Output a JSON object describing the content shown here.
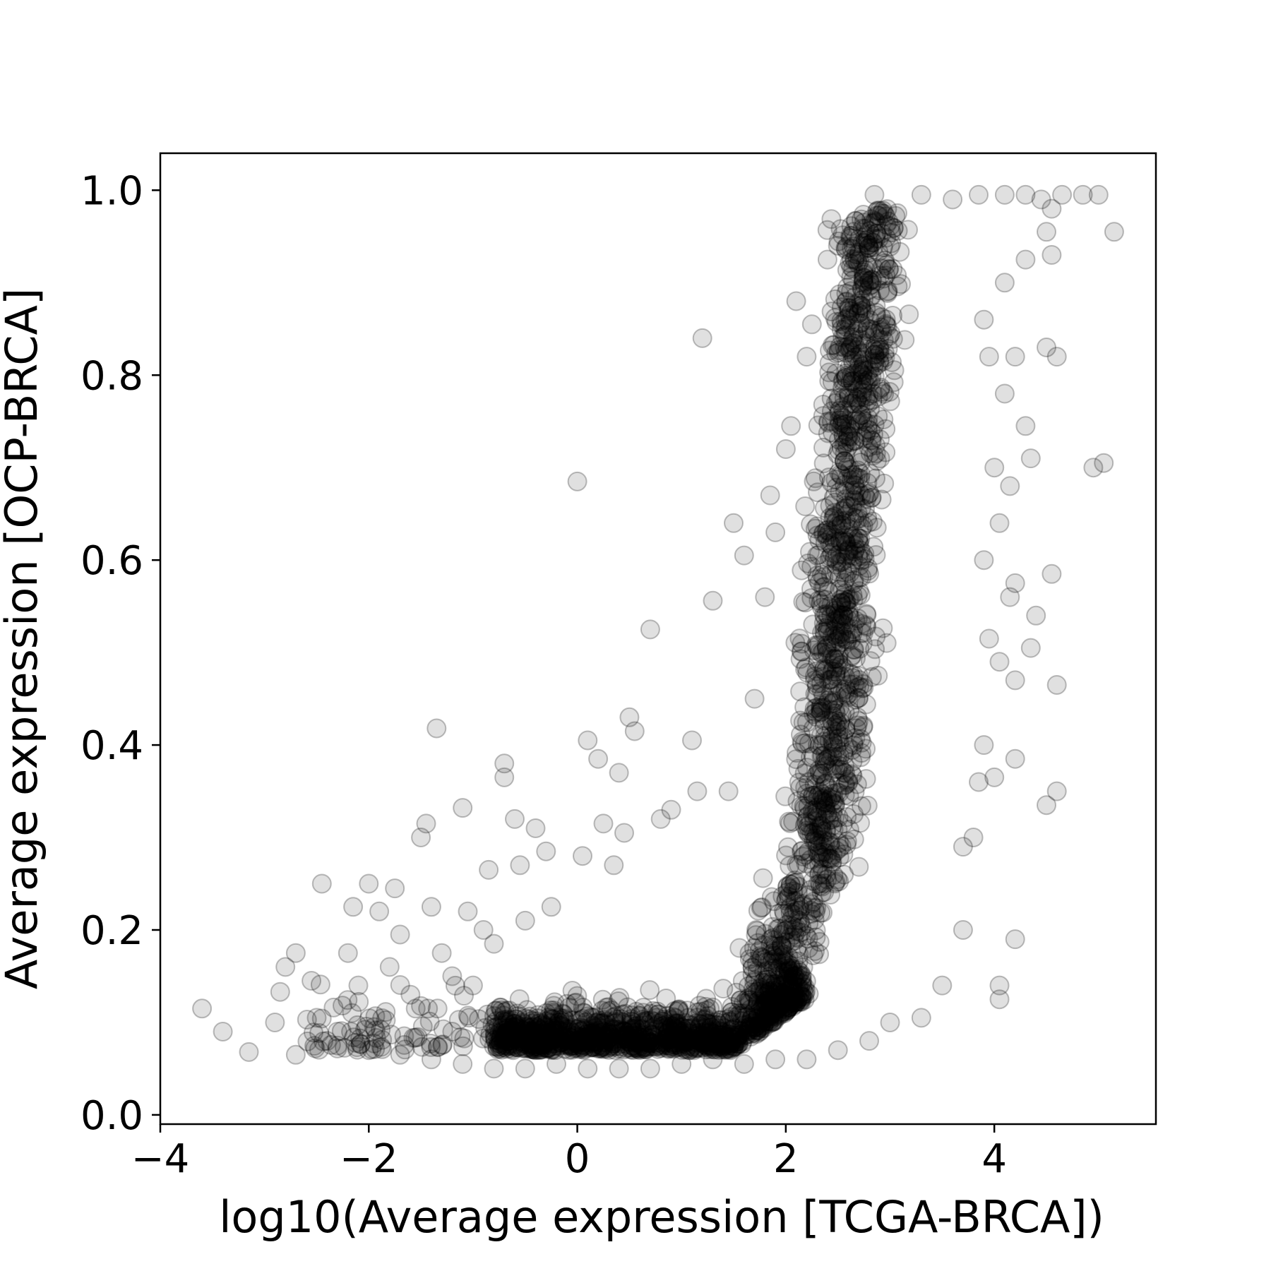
{
  "chart_data": {
    "type": "scatter",
    "title": "",
    "xlabel": "log10(Average expression [TCGA-BRCA])",
    "ylabel": "Average expression [OCP-BRCA]",
    "xlim": [
      -4,
      5.55
    ],
    "ylim": [
      -0.01,
      1.04
    ],
    "xticks": [
      {
        "value": -4,
        "label": "−4"
      },
      {
        "value": -2,
        "label": "−2"
      },
      {
        "value": 0,
        "label": "0"
      },
      {
        "value": 2,
        "label": "2"
      },
      {
        "value": 4,
        "label": "4"
      }
    ],
    "yticks": [
      {
        "value": 0.0,
        "label": "0.0"
      },
      {
        "value": 0.2,
        "label": "0.2"
      },
      {
        "value": 0.4,
        "label": "0.4"
      },
      {
        "value": 0.6,
        "label": "0.6"
      },
      {
        "value": 0.8,
        "label": "0.8"
      },
      {
        "value": 1.0,
        "label": "1.0"
      }
    ],
    "grid": false,
    "marker": {
      "shape": "circle",
      "color": "#000000",
      "opacity": 0.12,
      "edge_opacity": 0.25
    },
    "points": [
      [
        -3.6,
        0.115
      ],
      [
        -3.4,
        0.09
      ],
      [
        -3.15,
        0.068
      ],
      [
        -2.9,
        0.1
      ],
      [
        -2.85,
        0.133
      ],
      [
        -2.8,
        0.16
      ],
      [
        -2.7,
        0.175
      ],
      [
        -2.7,
        0.065
      ],
      [
        -2.55,
        0.145
      ],
      [
        -2.5,
        0.105
      ],
      [
        -2.45,
        0.25
      ],
      [
        -2.4,
        0.08
      ],
      [
        -2.3,
        0.09
      ],
      [
        -2.2,
        0.175
      ],
      [
        -2.15,
        0.225
      ],
      [
        -2.1,
        0.14
      ],
      [
        -2.0,
        0.25
      ],
      [
        -1.95,
        0.095
      ],
      [
        -1.9,
        0.22
      ],
      [
        -1.8,
        0.16
      ],
      [
        -1.75,
        0.245
      ],
      [
        -1.7,
        0.195
      ],
      [
        -1.6,
        0.13
      ],
      [
        -1.55,
        0.115
      ],
      [
        -1.5,
        0.3
      ],
      [
        -1.45,
        0.315
      ],
      [
        -1.4,
        0.225
      ],
      [
        -1.35,
        0.418
      ],
      [
        -1.3,
        0.175
      ],
      [
        -1.2,
        0.09
      ],
      [
        -1.2,
        0.15
      ],
      [
        -1.1,
        0.332
      ],
      [
        -1.05,
        0.22
      ],
      [
        -1.0,
        0.14
      ],
      [
        -0.9,
        0.2
      ],
      [
        -0.85,
        0.265
      ],
      [
        -0.8,
        0.185
      ],
      [
        -0.7,
        0.38
      ],
      [
        -0.7,
        0.365
      ],
      [
        -0.6,
        0.32
      ],
      [
        -0.55,
        0.27
      ],
      [
        -0.5,
        0.21
      ],
      [
        -0.4,
        0.31
      ],
      [
        -0.3,
        0.285
      ],
      [
        -0.25,
        0.225
      ],
      [
        -0.1,
        0.12
      ],
      [
        0.0,
        0.685
      ],
      [
        0.05,
        0.28
      ],
      [
        0.1,
        0.405
      ],
      [
        0.2,
        0.385
      ],
      [
        0.25,
        0.315
      ],
      [
        0.35,
        0.27
      ],
      [
        0.4,
        0.37
      ],
      [
        0.45,
        0.305
      ],
      [
        0.5,
        0.43
      ],
      [
        0.55,
        0.415
      ],
      [
        0.7,
        0.525
      ],
      [
        0.8,
        0.32
      ],
      [
        0.9,
        0.33
      ],
      [
        1.1,
        0.405
      ],
      [
        1.15,
        0.35
      ],
      [
        1.2,
        0.84
      ],
      [
        1.3,
        0.556
      ],
      [
        1.45,
        0.35
      ],
      [
        1.5,
        0.64
      ],
      [
        1.6,
        0.605
      ],
      [
        1.7,
        0.45
      ],
      [
        1.8,
        0.56
      ],
      [
        1.85,
        0.67
      ],
      [
        1.9,
        0.63
      ],
      [
        2.0,
        0.72
      ],
      [
        2.05,
        0.745
      ],
      [
        2.1,
        0.88
      ],
      [
        2.2,
        0.82
      ],
      [
        2.25,
        0.855
      ],
      [
        2.4,
        0.925
      ],
      [
        2.5,
        0.94
      ],
      [
        2.65,
        0.955
      ],
      [
        2.75,
        0.965
      ],
      [
        2.85,
        0.995
      ],
      [
        3.3,
        0.995
      ],
      [
        3.6,
        0.99
      ],
      [
        3.85,
        0.995
      ],
      [
        4.1,
        0.995
      ],
      [
        4.3,
        0.995
      ],
      [
        4.45,
        0.99
      ],
      [
        4.55,
        0.98
      ],
      [
        4.65,
        0.995
      ],
      [
        4.85,
        0.995
      ],
      [
        5.0,
        0.995
      ],
      [
        5.15,
        0.955
      ],
      [
        4.5,
        0.955
      ],
      [
        4.55,
        0.93
      ],
      [
        4.3,
        0.925
      ],
      [
        4.1,
        0.9
      ],
      [
        4.2,
        0.82
      ],
      [
        4.5,
        0.83
      ],
      [
        4.6,
        0.82
      ],
      [
        3.9,
        0.86
      ],
      [
        3.95,
        0.82
      ],
      [
        4.1,
        0.78
      ],
      [
        4.3,
        0.745
      ],
      [
        4.35,
        0.71
      ],
      [
        4.0,
        0.7
      ],
      [
        4.15,
        0.68
      ],
      [
        4.05,
        0.64
      ],
      [
        3.9,
        0.6
      ],
      [
        4.2,
        0.575
      ],
      [
        4.4,
        0.54
      ],
      [
        4.15,
        0.56
      ],
      [
        3.95,
        0.515
      ],
      [
        4.05,
        0.49
      ],
      [
        4.2,
        0.47
      ],
      [
        4.35,
        0.505
      ],
      [
        4.55,
        0.585
      ],
      [
        4.6,
        0.465
      ],
      [
        4.6,
        0.35
      ],
      [
        4.5,
        0.335
      ],
      [
        4.2,
        0.385
      ],
      [
        4.0,
        0.365
      ],
      [
        3.85,
        0.36
      ],
      [
        3.9,
        0.4
      ],
      [
        3.8,
        0.3
      ],
      [
        3.7,
        0.29
      ],
      [
        3.7,
        0.2
      ],
      [
        4.2,
        0.19
      ],
      [
        4.05,
        0.14
      ],
      [
        4.05,
        0.125
      ],
      [
        4.95,
        0.7
      ],
      [
        5.05,
        0.705
      ],
      [
        3.5,
        0.14
      ],
      [
        3.3,
        0.105
      ],
      [
        3.0,
        0.1
      ],
      [
        2.8,
        0.08
      ],
      [
        2.5,
        0.07
      ],
      [
        2.2,
        0.06
      ],
      [
        1.9,
        0.06
      ],
      [
        1.6,
        0.055
      ],
      [
        1.3,
        0.06
      ],
      [
        1.0,
        0.055
      ],
      [
        0.7,
        0.05
      ],
      [
        0.4,
        0.05
      ],
      [
        0.1,
        0.05
      ],
      [
        -0.2,
        0.055
      ],
      [
        -0.5,
        0.05
      ],
      [
        -0.8,
        0.05
      ],
      [
        -1.1,
        0.055
      ],
      [
        -1.4,
        0.06
      ],
      [
        -1.7,
        0.065
      ],
      [
        -2.0,
        0.07
      ],
      [
        -2.3,
        0.075
      ]
    ]
  }
}
